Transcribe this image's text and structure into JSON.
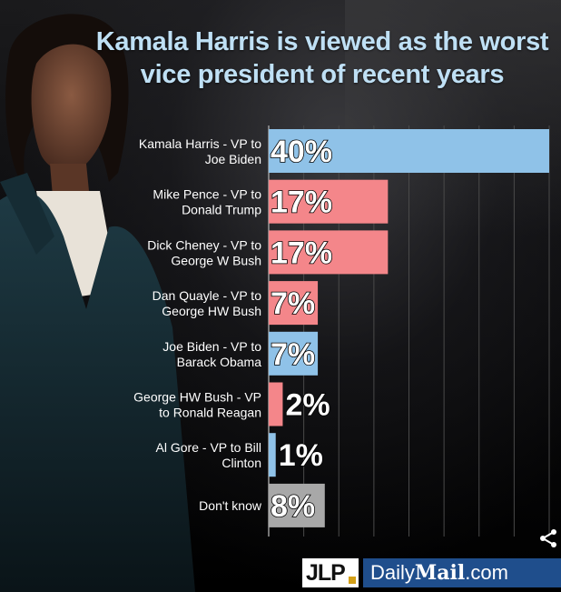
{
  "title_line1": "Kamala Harris is viewed as the worst",
  "title_line2": "vice president of recent years",
  "logos": {
    "jlp": "JLP",
    "dailymail_a": "Daily",
    "dailymail_b": "Mail",
    "dailymail_c": ".com"
  },
  "icons": {
    "share": "share-icon"
  },
  "colors": {
    "blue": "#8fc2e8",
    "red": "#f4868a",
    "gray": "#a8a8a8",
    "title": "#bfe0f5",
    "dailymail": "#1f4e8c"
  },
  "chart_data": {
    "type": "bar",
    "orientation": "horizontal",
    "title": "Kamala Harris is viewed as the worst vice president of recent years",
    "xlabel": "",
    "ylabel": "",
    "xlim": [
      0,
      40
    ],
    "grid": true,
    "categories": [
      [
        "Kamala Harris - VP to",
        "Joe Biden"
      ],
      [
        "Mike Pence - VP to",
        "Donald Trump"
      ],
      [
        "Dick Cheney - VP to",
        "George W Bush"
      ],
      [
        "Dan Quayle - VP to",
        "George HW Bush"
      ],
      [
        "Joe Biden - VP to",
        "Barack Obama"
      ],
      [
        "George HW Bush - VP",
        "to Ronald Reagan"
      ],
      [
        "Al Gore - VP to Bill",
        "Clinton"
      ],
      [
        "Don't know"
      ]
    ],
    "values": [
      40,
      17,
      17,
      7,
      7,
      2,
      1,
      8
    ],
    "value_labels": [
      "40%",
      "17%",
      "17%",
      "7%",
      "7%",
      "2%",
      "1%",
      "8%"
    ],
    "bar_colors": [
      "#8fc2e8",
      "#f4868a",
      "#f4868a",
      "#f4868a",
      "#8fc2e8",
      "#f4868a",
      "#8fc2e8",
      "#a8a8a8"
    ]
  }
}
